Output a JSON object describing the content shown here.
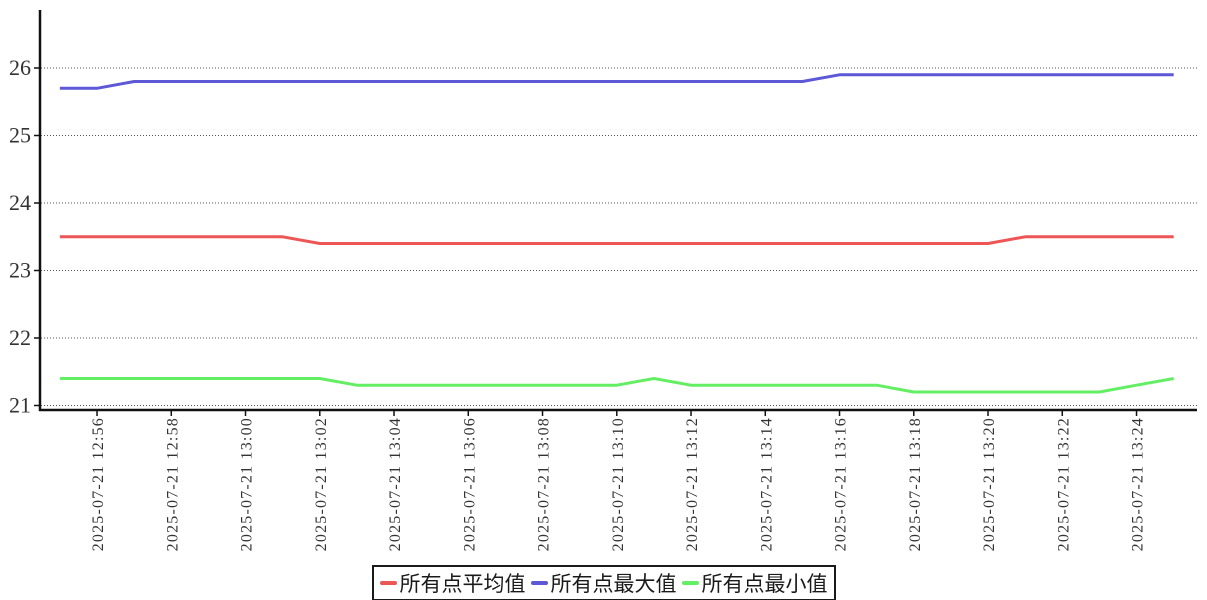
{
  "chart_data": {
    "type": "line",
    "x_labels": [
      "2025-07-21 12:55",
      "2025-07-21 12:56",
      "2025-07-21 12:57",
      "2025-07-21 12:58",
      "2025-07-21 12:59",
      "2025-07-21 13:00",
      "2025-07-21 13:01",
      "2025-07-21 13:02",
      "2025-07-21 13:03",
      "2025-07-21 13:04",
      "2025-07-21 13:05",
      "2025-07-21 13:06",
      "2025-07-21 13:07",
      "2025-07-21 13:08",
      "2025-07-21 13:09",
      "2025-07-21 13:10",
      "2025-07-21 13:11",
      "2025-07-21 13:12",
      "2025-07-21 13:13",
      "2025-07-21 13:14",
      "2025-07-21 13:15",
      "2025-07-21 13:16",
      "2025-07-21 13:17",
      "2025-07-21 13:18",
      "2025-07-21 13:19",
      "2025-07-21 13:20",
      "2025-07-21 13:21",
      "2025-07-21 13:22",
      "2025-07-21 13:23",
      "2025-07-21 13:24",
      "2025-07-21 13:25"
    ],
    "x_tick_indices": [
      1,
      3,
      5,
      7,
      9,
      11,
      13,
      15,
      17,
      19,
      21,
      23,
      25,
      27,
      29
    ],
    "x_tick_labels": [
      "2025-07-21 12:56",
      "2025-07-21 12:58",
      "2025-07-21 13:00",
      "2025-07-21 13:02",
      "2025-07-21 13:04",
      "2025-07-21 13:06",
      "2025-07-21 13:08",
      "2025-07-21 13:10",
      "2025-07-21 13:12",
      "2025-07-21 13:14",
      "2025-07-21 13:16",
      "2025-07-21 13:18",
      "2025-07-21 13:20",
      "2025-07-21 13:22",
      "2025-07-21 13:24"
    ],
    "y_ticks": [
      21,
      22,
      23,
      24,
      25,
      26
    ],
    "ylim": [
      21,
      26.86
    ],
    "grid": "dotted-horizontal",
    "legend_position": "bottom-center",
    "series": [
      {
        "name": "所有点平均值",
        "color": "#ee5555",
        "values": [
          23.5,
          23.5,
          23.5,
          23.5,
          23.5,
          23.5,
          23.5,
          23.4,
          23.4,
          23.4,
          23.4,
          23.4,
          23.4,
          23.4,
          23.4,
          23.4,
          23.4,
          23.4,
          23.4,
          23.4,
          23.4,
          23.4,
          23.4,
          23.4,
          23.4,
          23.4,
          23.5,
          23.5,
          23.5,
          23.5,
          23.5
        ]
      },
      {
        "name": "所有点最大值",
        "color": "#5c58d6",
        "values": [
          25.7,
          25.7,
          25.8,
          25.8,
          25.8,
          25.8,
          25.8,
          25.8,
          25.8,
          25.8,
          25.8,
          25.8,
          25.8,
          25.8,
          25.8,
          25.8,
          25.8,
          25.8,
          25.8,
          25.8,
          25.8,
          25.9,
          25.9,
          25.9,
          25.9,
          25.9,
          25.9,
          25.9,
          25.9,
          25.9,
          25.9
        ]
      },
      {
        "name": "所有点最小值",
        "color": "#63ee63",
        "values": [
          21.4,
          21.4,
          21.4,
          21.4,
          21.4,
          21.4,
          21.4,
          21.4,
          21.3,
          21.3,
          21.3,
          21.3,
          21.3,
          21.3,
          21.3,
          21.3,
          21.4,
          21.3,
          21.3,
          21.3,
          21.3,
          21.3,
          21.3,
          21.2,
          21.2,
          21.2,
          21.2,
          21.2,
          21.2,
          21.3,
          21.4
        ]
      }
    ]
  },
  "legend": {
    "items": [
      {
        "label": "所有点平均值",
        "color": "#ee5555"
      },
      {
        "label": "所有点最大值",
        "color": "#5c58d6"
      },
      {
        "label": "所有点最小值",
        "color": "#63ee63"
      }
    ]
  },
  "colors": {
    "axis": "#111111",
    "grid": "#555555",
    "tick_label": "#333333",
    "background": "#ffffff"
  }
}
